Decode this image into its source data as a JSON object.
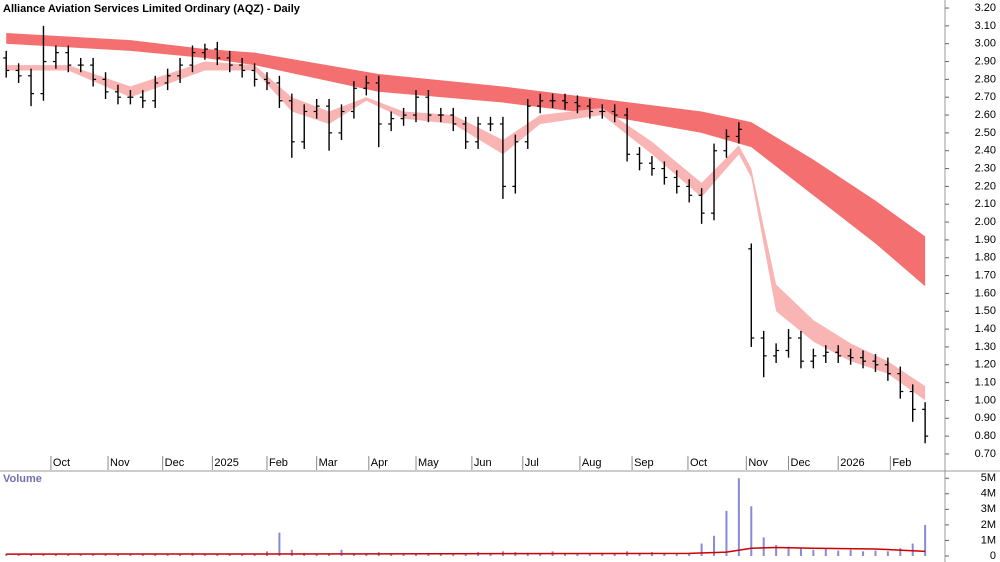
{
  "chart_data": [
    {
      "type": "ohlc",
      "title": "Alliance Aviation Services Limited Ordinary (AQZ) - Daily",
      "x": [
        0,
        1,
        2,
        3,
        4,
        5,
        6,
        7,
        8,
        9,
        10,
        11,
        12,
        13,
        14,
        15,
        16,
        17,
        18,
        19,
        20,
        21,
        22,
        23,
        24,
        25,
        26,
        27,
        28,
        29,
        30,
        31,
        32,
        33,
        34,
        35,
        36,
        37,
        38,
        39,
        40,
        41,
        42,
        43,
        44,
        45,
        46,
        47,
        48,
        49,
        50,
        51,
        52,
        53,
        54,
        55,
        56,
        57,
        58,
        59,
        60,
        61,
        62,
        63,
        64,
        65,
        66,
        67,
        68,
        69,
        70,
        71,
        72,
        73,
        74
      ],
      "open": [
        2.92,
        2.85,
        2.82,
        2.72,
        2.9,
        2.95,
        2.88,
        2.88,
        2.8,
        2.73,
        2.7,
        2.7,
        2.68,
        2.78,
        2.82,
        2.88,
        2.95,
        2.97,
        2.92,
        2.88,
        2.85,
        2.8,
        2.78,
        2.68,
        2.45,
        2.62,
        2.65,
        2.5,
        2.62,
        2.75,
        2.78,
        2.55,
        2.58,
        2.6,
        2.7,
        2.6,
        2.6,
        2.55,
        2.45,
        2.55,
        2.55,
        2.2,
        2.45,
        2.65,
        2.68,
        2.68,
        2.67,
        2.65,
        2.62,
        2.62,
        2.6,
        2.38,
        2.33,
        2.3,
        2.25,
        2.2,
        2.15,
        2.05,
        2.4,
        2.48,
        1.85,
        1.35,
        1.25,
        1.28,
        1.35,
        1.22,
        1.25,
        1.27,
        1.25,
        1.24,
        1.22,
        1.2,
        1.15,
        1.05,
        0.95
      ],
      "high": [
        2.96,
        2.89,
        2.86,
        3.1,
        2.99,
        2.99,
        2.92,
        2.92,
        2.84,
        2.77,
        2.74,
        2.74,
        2.82,
        2.86,
        2.92,
        2.99,
        3.0,
        3.01,
        2.96,
        2.92,
        2.89,
        2.84,
        2.82,
        2.72,
        2.66,
        2.69,
        2.69,
        2.66,
        2.79,
        2.82,
        2.82,
        2.62,
        2.64,
        2.74,
        2.74,
        2.64,
        2.64,
        2.59,
        2.59,
        2.59,
        2.59,
        2.49,
        2.69,
        2.72,
        2.72,
        2.72,
        2.71,
        2.69,
        2.66,
        2.66,
        2.64,
        2.42,
        2.37,
        2.34,
        2.29,
        2.24,
        2.19,
        2.44,
        2.52,
        2.56,
        1.88,
        1.39,
        1.32,
        1.4,
        1.39,
        1.29,
        1.31,
        1.31,
        1.29,
        1.28,
        1.26,
        1.24,
        1.19,
        1.09,
        0.99
      ],
      "low": [
        2.81,
        2.78,
        2.65,
        2.68,
        2.86,
        2.84,
        2.84,
        2.76,
        2.69,
        2.66,
        2.66,
        2.64,
        2.64,
        2.74,
        2.78,
        2.84,
        2.91,
        2.88,
        2.84,
        2.81,
        2.76,
        2.74,
        2.64,
        2.36,
        2.41,
        2.58,
        2.4,
        2.46,
        2.58,
        2.71,
        2.42,
        2.51,
        2.54,
        2.56,
        2.56,
        2.56,
        2.51,
        2.41,
        2.41,
        2.51,
        2.13,
        2.16,
        2.41,
        2.61,
        2.64,
        2.63,
        2.61,
        2.58,
        2.58,
        2.56,
        2.34,
        2.29,
        2.26,
        2.21,
        2.16,
        2.11,
        1.99,
        2.01,
        2.36,
        2.44,
        1.3,
        1.13,
        1.21,
        1.24,
        1.18,
        1.18,
        1.21,
        1.21,
        1.2,
        1.18,
        1.16,
        1.11,
        1.01,
        0.88,
        0.76
      ],
      "close": [
        2.85,
        2.82,
        2.72,
        2.9,
        2.95,
        2.88,
        2.88,
        2.8,
        2.73,
        2.7,
        2.7,
        2.68,
        2.78,
        2.82,
        2.88,
        2.95,
        2.97,
        2.92,
        2.88,
        2.85,
        2.8,
        2.78,
        2.68,
        2.45,
        2.62,
        2.65,
        2.5,
        2.62,
        2.75,
        2.78,
        2.55,
        2.58,
        2.6,
        2.7,
        2.6,
        2.6,
        2.55,
        2.45,
        2.55,
        2.55,
        2.2,
        2.45,
        2.65,
        2.68,
        2.68,
        2.67,
        2.65,
        2.62,
        2.62,
        2.6,
        2.38,
        2.33,
        2.3,
        2.25,
        2.2,
        2.15,
        2.05,
        2.4,
        2.48,
        2.52,
        1.35,
        1.25,
        1.28,
        1.35,
        1.22,
        1.25,
        1.27,
        1.25,
        1.24,
        1.22,
        1.2,
        1.15,
        1.05,
        0.95,
        0.8
      ],
      "color": "#000000",
      "bands": [
        {
          "color": "#f46f6f",
          "x": [
            0,
            10,
            16,
            20,
            30,
            40,
            48,
            56,
            60,
            65,
            70,
            74
          ],
          "upper": [
            3.06,
            3.02,
            2.97,
            2.95,
            2.83,
            2.76,
            2.69,
            2.62,
            2.56,
            2.35,
            2.12,
            1.92
          ],
          "lower": [
            3.0,
            2.96,
            2.92,
            2.88,
            2.73,
            2.67,
            2.6,
            2.5,
            2.42,
            2.15,
            1.88,
            1.64
          ]
        },
        {
          "color": "#f9b4b4",
          "x": [
            0,
            5,
            10,
            16,
            20,
            23,
            26,
            29,
            32,
            36,
            40,
            43,
            48,
            52,
            56,
            59,
            60,
            62,
            65,
            68,
            71,
            74
          ],
          "upper": [
            2.88,
            2.88,
            2.76,
            2.9,
            2.88,
            2.7,
            2.62,
            2.7,
            2.62,
            2.6,
            2.46,
            2.6,
            2.64,
            2.45,
            2.22,
            2.43,
            2.3,
            1.65,
            1.45,
            1.32,
            1.22,
            1.08
          ],
          "lower": [
            2.85,
            2.85,
            2.7,
            2.85,
            2.85,
            2.62,
            2.55,
            2.68,
            2.58,
            2.55,
            2.38,
            2.55,
            2.6,
            2.38,
            2.14,
            2.38,
            2.25,
            1.5,
            1.33,
            1.22,
            1.15,
            1.0
          ]
        }
      ],
      "xlim": [
        -0.5,
        75.6
      ],
      "xticks": [
        {
          "value": 3.6,
          "label": "Oct"
        },
        {
          "value": 8.2,
          "label": "Nov"
        },
        {
          "value": 12.6,
          "label": "Dec"
        },
        {
          "value": 16.6,
          "label": "2025"
        },
        {
          "value": 21,
          "label": "Feb"
        },
        {
          "value": 25,
          "label": "Mar"
        },
        {
          "value": 29.2,
          "label": "Apr"
        },
        {
          "value": 33,
          "label": "May"
        },
        {
          "value": 37.5,
          "label": "Jun"
        },
        {
          "value": 41.6,
          "label": "Jul"
        },
        {
          "value": 46.2,
          "label": "Aug"
        },
        {
          "value": 50.4,
          "label": "Sep"
        },
        {
          "value": 54.9,
          "label": "Oct"
        },
        {
          "value": 59.6,
          "label": "Nov"
        },
        {
          "value": 63,
          "label": "Dec"
        },
        {
          "value": 67,
          "label": "2026"
        },
        {
          "value": 71.2,
          "label": "Feb"
        }
      ],
      "ylim": [
        0.61,
        3.245
      ],
      "yticks": [
        {
          "value": 0.7,
          "label": "0.70"
        },
        {
          "value": 0.8,
          "label": "0.80"
        },
        {
          "value": 0.9,
          "label": "0.90"
        },
        {
          "value": 1.0,
          "label": "1.00"
        },
        {
          "value": 1.1,
          "label": "1.10"
        },
        {
          "value": 1.2,
          "label": "1.20"
        },
        {
          "value": 1.3,
          "label": "1.30"
        },
        {
          "value": 1.4,
          "label": "1.40"
        },
        {
          "value": 1.5,
          "label": "1.50"
        },
        {
          "value": 1.6,
          "label": "1.60"
        },
        {
          "value": 1.7,
          "label": "1.70"
        },
        {
          "value": 1.8,
          "label": "1.80"
        },
        {
          "value": 1.9,
          "label": "1.90"
        },
        {
          "value": 2.0,
          "label": "2.00"
        },
        {
          "value": 2.1,
          "label": "2.10"
        },
        {
          "value": 2.2,
          "label": "2.20"
        },
        {
          "value": 2.3,
          "label": "2.30"
        },
        {
          "value": 2.4,
          "label": "2.40"
        },
        {
          "value": 2.5,
          "label": "2.50"
        },
        {
          "value": 2.6,
          "label": "2.60"
        },
        {
          "value": 2.7,
          "label": "2.70"
        },
        {
          "value": 2.8,
          "label": "2.80"
        },
        {
          "value": 2.9,
          "label": "2.90"
        },
        {
          "value": 3.0,
          "label": "3.00"
        },
        {
          "value": 3.1,
          "label": "3.10"
        },
        {
          "value": 3.2,
          "label": "3.20"
        }
      ]
    },
    {
      "type": "bar",
      "title": "Volume",
      "x": [
        0,
        1,
        2,
        3,
        4,
        5,
        6,
        7,
        8,
        9,
        10,
        11,
        12,
        13,
        14,
        15,
        16,
        17,
        18,
        19,
        20,
        21,
        22,
        23,
        24,
        25,
        26,
        27,
        28,
        29,
        30,
        31,
        32,
        33,
        34,
        35,
        36,
        37,
        38,
        39,
        40,
        41,
        42,
        43,
        44,
        45,
        46,
        47,
        48,
        49,
        50,
        51,
        52,
        53,
        54,
        55,
        56,
        57,
        58,
        59,
        60,
        61,
        62,
        63,
        64,
        65,
        66,
        67,
        68,
        69,
        70,
        71,
        72,
        73,
        74
      ],
      "values": [
        150000,
        120000,
        100000,
        130000,
        110000,
        100000,
        90000,
        120000,
        100000,
        110000,
        130000,
        100000,
        150000,
        110000,
        120000,
        200000,
        130000,
        150000,
        110000,
        100000,
        120000,
        300000,
        1500000,
        400000,
        200000,
        150000,
        120000,
        400000,
        180000,
        150000,
        250000,
        130000,
        150000,
        160000,
        200000,
        120000,
        150000,
        180000,
        250000,
        150000,
        300000,
        250000,
        200000,
        180000,
        300000,
        160000,
        150000,
        120000,
        200000,
        150000,
        300000,
        200000,
        250000,
        200000,
        150000,
        200000,
        800000,
        1300000,
        2900000,
        5000000,
        3200000,
        1200000,
        700000,
        600000,
        500000,
        400000,
        450000,
        350000,
        400000,
        300000,
        350000,
        300000,
        500000,
        800000,
        2000000
      ],
      "color": "#8a8ad2",
      "average": {
        "color": "#cc0000",
        "x": [
          0,
          20,
          40,
          55,
          58,
          60,
          62,
          65,
          70,
          74
        ],
        "values": [
          120000,
          130000,
          150000,
          170000,
          250000,
          500000,
          550000,
          500000,
          450000,
          300000
        ]
      },
      "xlim": [
        -0.5,
        75.6
      ],
      "ylim": [
        0,
        5400000
      ],
      "yticks": [
        0,
        {
          "value": 1000000,
          "label": "1M"
        },
        {
          "value": 2000000,
          "label": "2M"
        },
        {
          "value": 3000000,
          "label": "3M"
        },
        {
          "value": 4000000,
          "label": "4M"
        },
        {
          "value": 5000000,
          "label": "5M"
        }
      ]
    }
  ]
}
